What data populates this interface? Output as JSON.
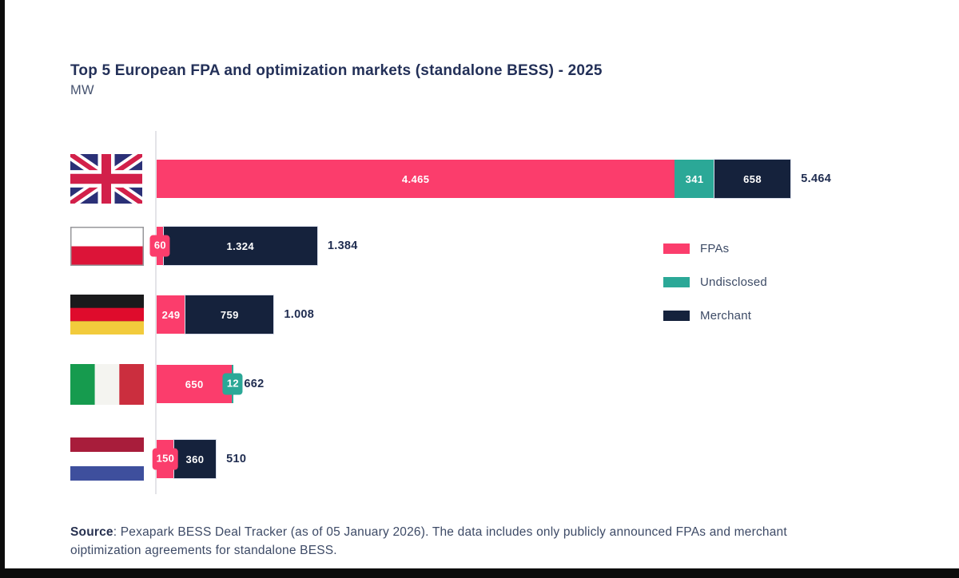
{
  "header": {
    "title": "Top 5 European FPA and optimization markets (standalone BESS) - 2025",
    "unit": "MW"
  },
  "chart_data": {
    "type": "bar",
    "orientation": "horizontal",
    "stacked": true,
    "title": "Top 5 European FPA and optimization markets (standalone BESS) - 2025",
    "value_unit": "MW",
    "xlim": [
      0,
      5464
    ],
    "grid": false,
    "legend_position": "center-right",
    "categories": [
      "United Kingdom",
      "Poland",
      "Germany",
      "Italy",
      "Netherlands"
    ],
    "series": [
      {
        "name": "FPAs",
        "color": "#FB3D6C",
        "values": [
          4465,
          60,
          249,
          650,
          150
        ]
      },
      {
        "name": "Undisclosed",
        "color": "#2BA897",
        "values": [
          341,
          0,
          0,
          12,
          0
        ]
      },
      {
        "name": "Merchant",
        "color": "#15223C",
        "values": [
          658,
          1324,
          759,
          0,
          360
        ]
      }
    ],
    "totals": [
      5464,
      1384,
      1008,
      662,
      510
    ],
    "rows": [
      {
        "country": "United Kingdom",
        "flag": "uk",
        "total_label": "5.464",
        "segments": [
          {
            "series": "FPAs",
            "value": 4465,
            "label": "4.465"
          },
          {
            "series": "Undisclosed",
            "value": 341,
            "label": "341"
          },
          {
            "series": "Merchant",
            "value": 658,
            "label": "658"
          }
        ]
      },
      {
        "country": "Poland",
        "flag": "pl",
        "total_label": "1.384",
        "segments": [
          {
            "series": "FPAs",
            "value": 60,
            "label": "60",
            "pill": true
          },
          {
            "series": "Merchant",
            "value": 1324,
            "label": "1.324"
          }
        ]
      },
      {
        "country": "Germany",
        "flag": "de",
        "total_label": "1.008",
        "segments": [
          {
            "series": "FPAs",
            "value": 249,
            "label": "249"
          },
          {
            "series": "Merchant",
            "value": 759,
            "label": "759"
          }
        ]
      },
      {
        "country": "Italy",
        "flag": "it",
        "total_label": "662",
        "segments": [
          {
            "series": "FPAs",
            "value": 650,
            "label": "650"
          },
          {
            "series": "Undisclosed",
            "value": 12,
            "label": "12",
            "pill": true
          }
        ]
      },
      {
        "country": "Netherlands",
        "flag": "nl",
        "total_label": "510",
        "segments": [
          {
            "series": "FPAs",
            "value": 150,
            "label": "150",
            "pill": true
          },
          {
            "series": "Merchant",
            "value": 360,
            "label": "360"
          }
        ]
      }
    ]
  },
  "legend": {
    "items": [
      {
        "label": "FPAs",
        "color": "#FB3D6C"
      },
      {
        "label": "Undisclosed",
        "color": "#2BA897"
      },
      {
        "label": "Merchant",
        "color": "#15223C"
      }
    ]
  },
  "source": {
    "prefix": "Source",
    "line1": ": Pexapark BESS Deal Tracker (as of 05 January 2026). The data includes only publicly announced FPAs and merchant",
    "line2": "oiptimization agreements for standalone BESS."
  }
}
